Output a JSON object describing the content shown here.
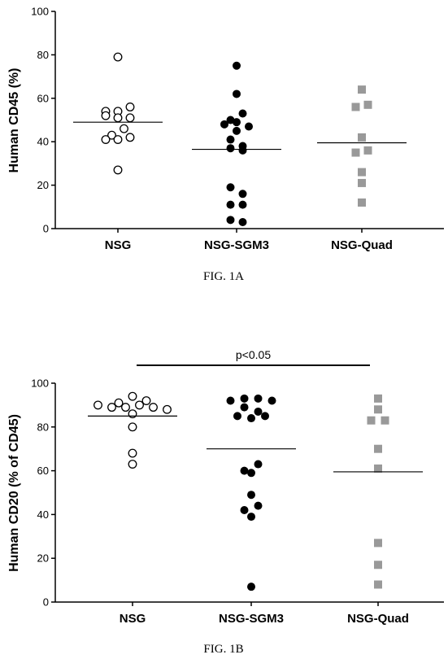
{
  "chart_data": [
    {
      "type": "scatter",
      "caption": "FIG. 1A",
      "ylabel": "Human  CD45 (%)",
      "ylim": [
        0,
        100
      ],
      "yticks": [
        0,
        20,
        40,
        60,
        80,
        100
      ],
      "categories": [
        "NSG",
        "NSG-SGM3",
        "NSG-Quad"
      ],
      "series": [
        {
          "category": "NSG",
          "marker": "open-circle",
          "color": "#000000",
          "values": [
            79,
            54,
            52,
            51,
            51,
            54,
            56,
            43,
            41,
            41,
            42,
            46,
            27
          ],
          "mean": 49
        },
        {
          "category": "NSG-SGM3",
          "marker": "filled-circle",
          "color": "#000000",
          "values": [
            75,
            62,
            48,
            49,
            50,
            53,
            47,
            45,
            41,
            37,
            38,
            36,
            19,
            16,
            11,
            11,
            4,
            3
          ],
          "mean": 36.5
        },
        {
          "category": "NSG-Quad",
          "marker": "filled-square",
          "color": "#999999",
          "values": [
            64,
            56,
            57,
            42,
            35,
            36,
            26,
            21,
            12
          ],
          "mean": 39.5
        }
      ]
    },
    {
      "type": "scatter",
      "caption": "FIG. 1B",
      "ylabel": "Human  CD20 (% of CD45)",
      "ylim": [
        0,
        100
      ],
      "yticks": [
        0,
        20,
        40,
        60,
        80,
        100
      ],
      "categories": [
        "NSG",
        "NSG-SGM3",
        "NSG-Quad"
      ],
      "annotation": {
        "text": "p<0.05",
        "from": "NSG",
        "to": "NSG-Quad"
      },
      "series": [
        {
          "category": "NSG",
          "marker": "open-circle",
          "color": "#000000",
          "values": [
            91,
            90,
            94,
            92,
            89,
            89,
            90,
            89,
            86,
            88,
            80,
            68,
            63
          ],
          "mean": 85
        },
        {
          "category": "NSG-SGM3",
          "marker": "filled-circle",
          "color": "#000000",
          "values": [
            92,
            93,
            93,
            92,
            89,
            85,
            87,
            84,
            85,
            60,
            59,
            63,
            49,
            42,
            44,
            39,
            7
          ],
          "mean": 70
        },
        {
          "category": "NSG-Quad",
          "marker": "filled-square",
          "color": "#999999",
          "values": [
            88,
            93,
            83,
            83,
            70,
            61,
            27,
            17,
            8
          ],
          "mean": 59.5
        }
      ]
    }
  ]
}
